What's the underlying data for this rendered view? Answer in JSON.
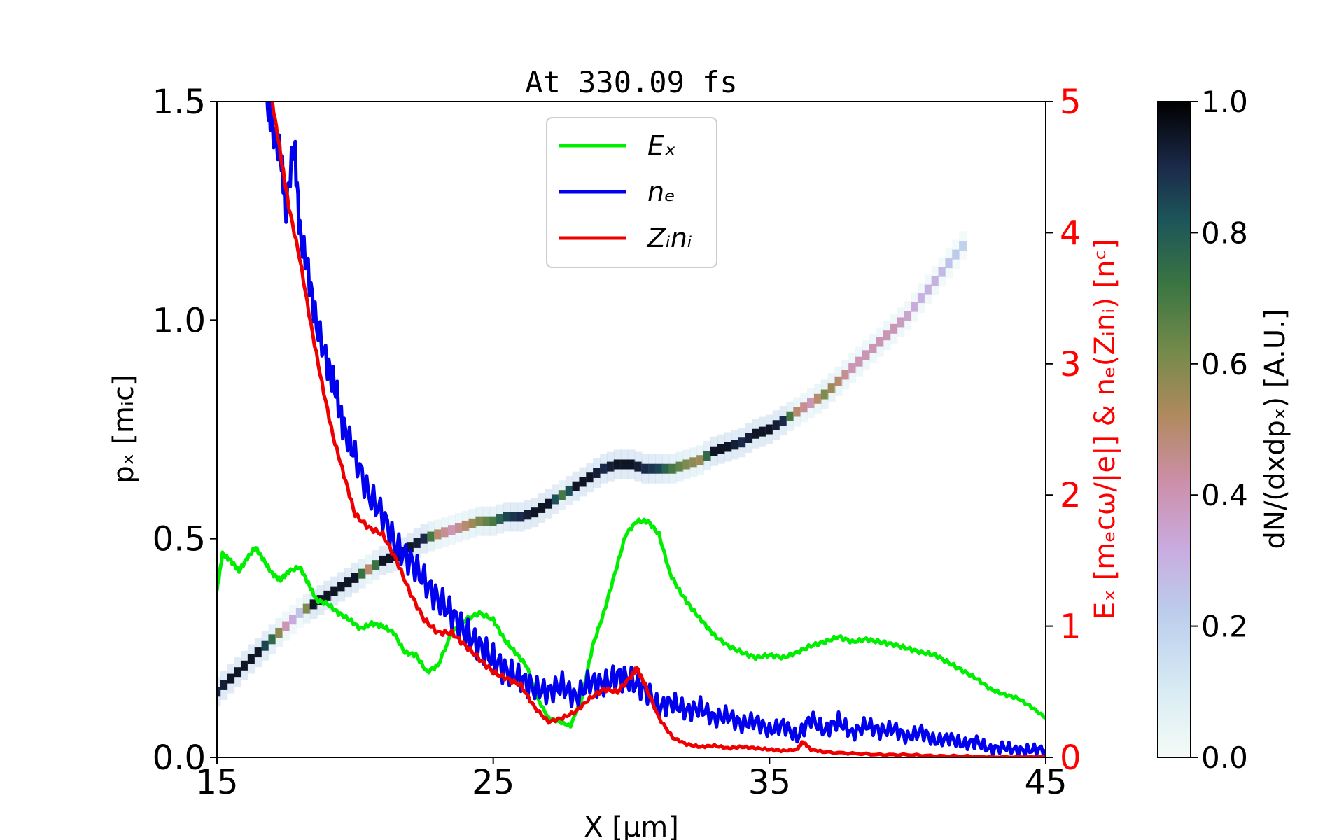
{
  "chart_data": {
    "type": "line",
    "title": "At 330.09 fs",
    "xlabel": "X [μm]",
    "ylabel": "pₓ [mᵢc]",
    "ylabel_right": "Eₓ [mₑcω/|e|] & nₑ(Zᵢnᵢ) [nᶜ]",
    "colorbar_label": "dN/(dxdpₓ) [A.U.]",
    "xlim": [
      15,
      45
    ],
    "ylim": [
      0,
      1.5
    ],
    "ylim_right": [
      0,
      5
    ],
    "clim": [
      0,
      1
    ],
    "x_ticks": [
      "15",
      "25",
      "35",
      "45"
    ],
    "y_ticks": [
      "0.0",
      "0.5",
      "1.0",
      "1.5"
    ],
    "y_ticks_right": [
      "0",
      "1",
      "2",
      "3",
      "4",
      "5"
    ],
    "colorbar_ticks": [
      "0.0",
      "0.2",
      "0.4",
      "0.6",
      "0.8",
      "1.0"
    ],
    "legend_position": "top-center",
    "legend": [
      "Eₓ",
      "nₑ",
      "Zᵢnᵢ"
    ],
    "colors": {
      "Ex": "#00ee00",
      "ne": "#0000ee",
      "Zini": "#ee0000",
      "right_axis": "#ff0000"
    },
    "series": [
      {
        "name": "Ex",
        "axis": "right",
        "x": [
          15.0,
          15.2,
          15.5,
          15.8,
          16.1,
          16.4,
          16.7,
          17.0,
          17.3,
          17.6,
          18.0,
          18.3,
          18.6,
          19.0,
          19.4,
          19.8,
          20.2,
          20.6,
          21.0,
          21.4,
          21.8,
          22.2,
          22.6,
          23.0,
          23.5,
          24.0,
          24.5,
          25.0,
          25.4,
          25.8,
          26.2,
          26.6,
          27.0,
          27.4,
          27.8,
          28.2,
          28.6,
          29.0,
          29.4,
          29.8,
          30.2,
          30.6,
          31.0,
          31.4,
          31.8,
          32.2,
          32.6,
          33.0,
          33.5,
          34.0,
          34.5,
          35.0,
          35.5,
          36.0,
          36.5,
          37.0,
          37.5,
          38.0,
          38.5,
          39.0,
          39.5,
          40.0,
          40.5,
          41.0,
          41.5,
          42.0,
          42.5,
          43.0,
          43.5,
          44.0,
          44.5,
          45.0
        ],
        "y": [
          1.27,
          1.55,
          1.5,
          1.42,
          1.52,
          1.6,
          1.5,
          1.4,
          1.35,
          1.42,
          1.45,
          1.33,
          1.2,
          1.17,
          1.1,
          1.05,
          0.98,
          1.02,
          1.0,
          0.95,
          0.8,
          0.78,
          0.65,
          0.7,
          0.95,
          1.05,
          1.1,
          1.05,
          0.9,
          0.8,
          0.7,
          0.45,
          0.3,
          0.27,
          0.24,
          0.45,
          0.85,
          1.1,
          1.4,
          1.7,
          1.8,
          1.8,
          1.7,
          1.4,
          1.25,
          1.13,
          1.03,
          0.93,
          0.85,
          0.8,
          0.76,
          0.78,
          0.76,
          0.8,
          0.85,
          0.88,
          0.92,
          0.88,
          0.9,
          0.88,
          0.86,
          0.83,
          0.8,
          0.78,
          0.72,
          0.66,
          0.6,
          0.52,
          0.48,
          0.45,
          0.38,
          0.3
        ]
      },
      {
        "name": "ne",
        "axis": "right",
        "x": [
          16.8,
          17.0,
          17.3,
          17.5,
          17.8,
          18.0,
          18.3,
          18.6,
          19.0,
          19.3,
          19.6,
          20.0,
          20.5,
          21.0,
          21.5,
          22.0,
          22.5,
          23.0,
          23.5,
          24.0,
          24.5,
          25.0,
          25.5,
          26.0,
          26.5,
          27.0,
          27.5,
          28.0,
          28.5,
          29.0,
          29.5,
          30.0,
          30.5,
          31.0,
          31.5,
          32.0,
          32.5,
          33.0,
          33.5,
          34.0,
          34.5,
          35.0,
          35.5,
          36.0,
          36.5,
          37.0,
          37.5,
          38.0,
          38.5,
          39.0,
          39.5,
          40.0,
          40.5,
          41.0,
          41.5,
          42.0,
          42.5,
          43.0,
          43.5,
          44.0,
          44.5,
          45.0
        ],
        "y": [
          5.0,
          4.8,
          4.6,
          4.2,
          4.7,
          4.0,
          3.7,
          3.3,
          3.0,
          2.8,
          2.5,
          2.3,
          2.0,
          1.85,
          1.6,
          1.5,
          1.35,
          1.2,
          1.1,
          0.95,
          0.85,
          0.75,
          0.65,
          0.6,
          0.52,
          0.5,
          0.55,
          0.45,
          0.58,
          0.55,
          0.62,
          0.58,
          0.52,
          0.38,
          0.42,
          0.35,
          0.38,
          0.3,
          0.32,
          0.25,
          0.28,
          0.2,
          0.25,
          0.15,
          0.3,
          0.2,
          0.28,
          0.18,
          0.25,
          0.2,
          0.22,
          0.15,
          0.2,
          0.12,
          0.15,
          0.1,
          0.12,
          0.06,
          0.08,
          0.05,
          0.06,
          0.06
        ]
      },
      {
        "name": "Zini",
        "axis": "right",
        "x": [
          17.0,
          17.3,
          17.6,
          18.0,
          18.4,
          18.8,
          19.2,
          19.6,
          20.0,
          20.5,
          21.0,
          21.5,
          22.0,
          22.5,
          23.0,
          23.5,
          24.0,
          24.5,
          25.0,
          25.5,
          26.0,
          26.5,
          27.0,
          27.5,
          28.0,
          28.5,
          29.0,
          29.5,
          30.0,
          30.2,
          30.5,
          31.0,
          31.5,
          32.0,
          32.5,
          33.0,
          33.5,
          34.0,
          34.5,
          35.0,
          35.5,
          36.0,
          36.2,
          36.5,
          37.0,
          38.0,
          39.0,
          40.0,
          41.0,
          42.0,
          43.0,
          44.0,
          45.0
        ],
        "y": [
          5.0,
          4.6,
          4.2,
          3.8,
          3.3,
          2.85,
          2.45,
          2.15,
          1.85,
          1.75,
          1.7,
          1.5,
          1.25,
          1.05,
          0.95,
          0.95,
          0.85,
          0.75,
          0.65,
          0.6,
          0.55,
          0.38,
          0.27,
          0.3,
          0.35,
          0.45,
          0.52,
          0.5,
          0.62,
          0.68,
          0.55,
          0.3,
          0.15,
          0.1,
          0.08,
          0.09,
          0.07,
          0.08,
          0.07,
          0.06,
          0.05,
          0.06,
          0.12,
          0.06,
          0.04,
          0.03,
          0.02,
          0.02,
          0.01,
          0.01,
          0.0,
          0.0,
          0.0
        ]
      }
    ],
    "phase_space": {
      "name": "dN/(dxdpx)",
      "axis": "left",
      "x": [
        15.0,
        15.5,
        16.0,
        16.5,
        17.0,
        17.5,
        18.0,
        18.5,
        19.0,
        19.5,
        20.0,
        20.5,
        21.0,
        21.5,
        22.0,
        22.5,
        23.0,
        23.5,
        24.0,
        24.5,
        25.0,
        25.5,
        26.0,
        26.5,
        27.0,
        27.5,
        28.0,
        28.5,
        29.0,
        29.5,
        30.0,
        30.5,
        31.0,
        31.5,
        32.0,
        32.5,
        33.0,
        33.5,
        34.0,
        34.5,
        35.0,
        35.5,
        36.0,
        36.5,
        37.0,
        37.5,
        38.0,
        38.5,
        39.0,
        39.5,
        40.0,
        40.5,
        41.0,
        41.5,
        42.0,
        42.3
      ],
      "px": [
        0.15,
        0.18,
        0.21,
        0.24,
        0.27,
        0.3,
        0.33,
        0.35,
        0.37,
        0.39,
        0.41,
        0.43,
        0.45,
        0.46,
        0.48,
        0.5,
        0.51,
        0.52,
        0.53,
        0.54,
        0.54,
        0.55,
        0.55,
        0.56,
        0.58,
        0.6,
        0.62,
        0.64,
        0.66,
        0.67,
        0.67,
        0.66,
        0.66,
        0.66,
        0.67,
        0.68,
        0.7,
        0.71,
        0.72,
        0.74,
        0.75,
        0.77,
        0.79,
        0.81,
        0.83,
        0.86,
        0.89,
        0.92,
        0.95,
        0.98,
        1.01,
        1.05,
        1.09,
        1.13,
        1.17,
        1.2
      ],
      "intensity": [
        0.9,
        0.95,
        0.95,
        0.95,
        0.75,
        0.4,
        0.25,
        0.95,
        0.95,
        0.95,
        0.95,
        0.5,
        0.95,
        0.95,
        0.95,
        0.9,
        0.5,
        0.4,
        0.5,
        0.6,
        0.7,
        0.85,
        0.9,
        0.95,
        0.95,
        0.7,
        0.95,
        0.95,
        0.9,
        0.95,
        0.95,
        0.9,
        0.85,
        0.7,
        0.6,
        0.55,
        0.95,
        0.95,
        0.9,
        0.95,
        0.95,
        0.9,
        0.5,
        0.4,
        0.6,
        0.5,
        0.4,
        0.4,
        0.4,
        0.4,
        0.35,
        0.3,
        0.3,
        0.25,
        0.2,
        0.15
      ]
    }
  }
}
